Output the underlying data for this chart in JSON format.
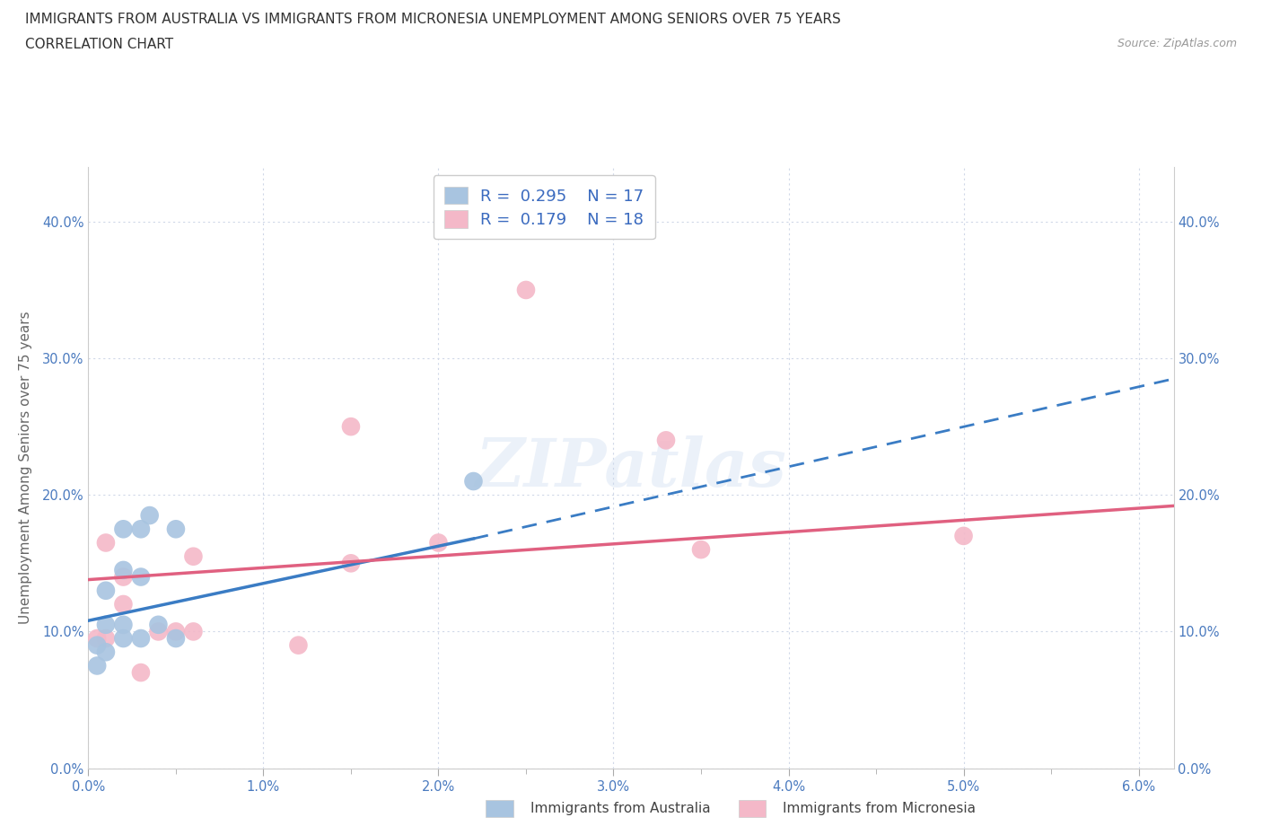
{
  "title_line1": "IMMIGRANTS FROM AUSTRALIA VS IMMIGRANTS FROM MICRONESIA UNEMPLOYMENT AMONG SENIORS OVER 75 YEARS",
  "title_line2": "CORRELATION CHART",
  "source_text": "Source: ZipAtlas.com",
  "ylabel": "Unemployment Among Seniors over 75 years",
  "xlim": [
    0.0,
    0.062
  ],
  "ylim": [
    0.0,
    0.44
  ],
  "xticks": [
    0.0,
    0.01,
    0.02,
    0.03,
    0.04,
    0.05,
    0.06
  ],
  "xtick_labels": [
    "0.0%",
    "1.0%",
    "2.0%",
    "3.0%",
    "4.0%",
    "5.0%",
    "6.0%"
  ],
  "yticks": [
    0.0,
    0.1,
    0.2,
    0.3,
    0.4
  ],
  "ytick_labels": [
    "0.0%",
    "10.0%",
    "20.0%",
    "30.0%",
    "40.0%"
  ],
  "australia_color": "#a8c4e0",
  "micronesia_color": "#f4b8c8",
  "trendline_australia_color": "#3a7cc4",
  "trendline_micronesia_color": "#e06080",
  "legend_R_australia": "0.295",
  "legend_N_australia": "17",
  "legend_R_micronesia": "0.179",
  "legend_N_micronesia": "18",
  "australia_x": [
    0.0005,
    0.0005,
    0.001,
    0.001,
    0.001,
    0.002,
    0.002,
    0.002,
    0.002,
    0.003,
    0.003,
    0.003,
    0.0035,
    0.004,
    0.005,
    0.005,
    0.022
  ],
  "australia_y": [
    0.075,
    0.09,
    0.085,
    0.105,
    0.13,
    0.095,
    0.105,
    0.145,
    0.175,
    0.095,
    0.14,
    0.175,
    0.185,
    0.105,
    0.095,
    0.175,
    0.21
  ],
  "micronesia_x": [
    0.0005,
    0.001,
    0.001,
    0.002,
    0.002,
    0.003,
    0.004,
    0.005,
    0.006,
    0.006,
    0.012,
    0.015,
    0.015,
    0.02,
    0.025,
    0.033,
    0.035,
    0.05
  ],
  "micronesia_y": [
    0.095,
    0.095,
    0.165,
    0.12,
    0.14,
    0.07,
    0.1,
    0.1,
    0.155,
    0.1,
    0.09,
    0.15,
    0.25,
    0.165,
    0.35,
    0.24,
    0.16,
    0.17
  ],
  "aus_trend_x0": 0.0,
  "aus_trend_y0": 0.108,
  "aus_trend_x1": 0.022,
  "aus_trend_y1": 0.168,
  "aus_trend_dash_x1": 0.062,
  "aus_trend_dash_y1": 0.285,
  "mic_trend_x0": 0.0,
  "mic_trend_y0": 0.138,
  "mic_trend_x1": 0.062,
  "mic_trend_y1": 0.192,
  "watermark": "ZIPatlas",
  "background_color": "#ffffff",
  "grid_color": "#d0d8e8",
  "tick_color": "#4a7abf",
  "title_color": "#333333",
  "legend_text_color": "#3a6abf",
  "axis_label_color": "#666666"
}
